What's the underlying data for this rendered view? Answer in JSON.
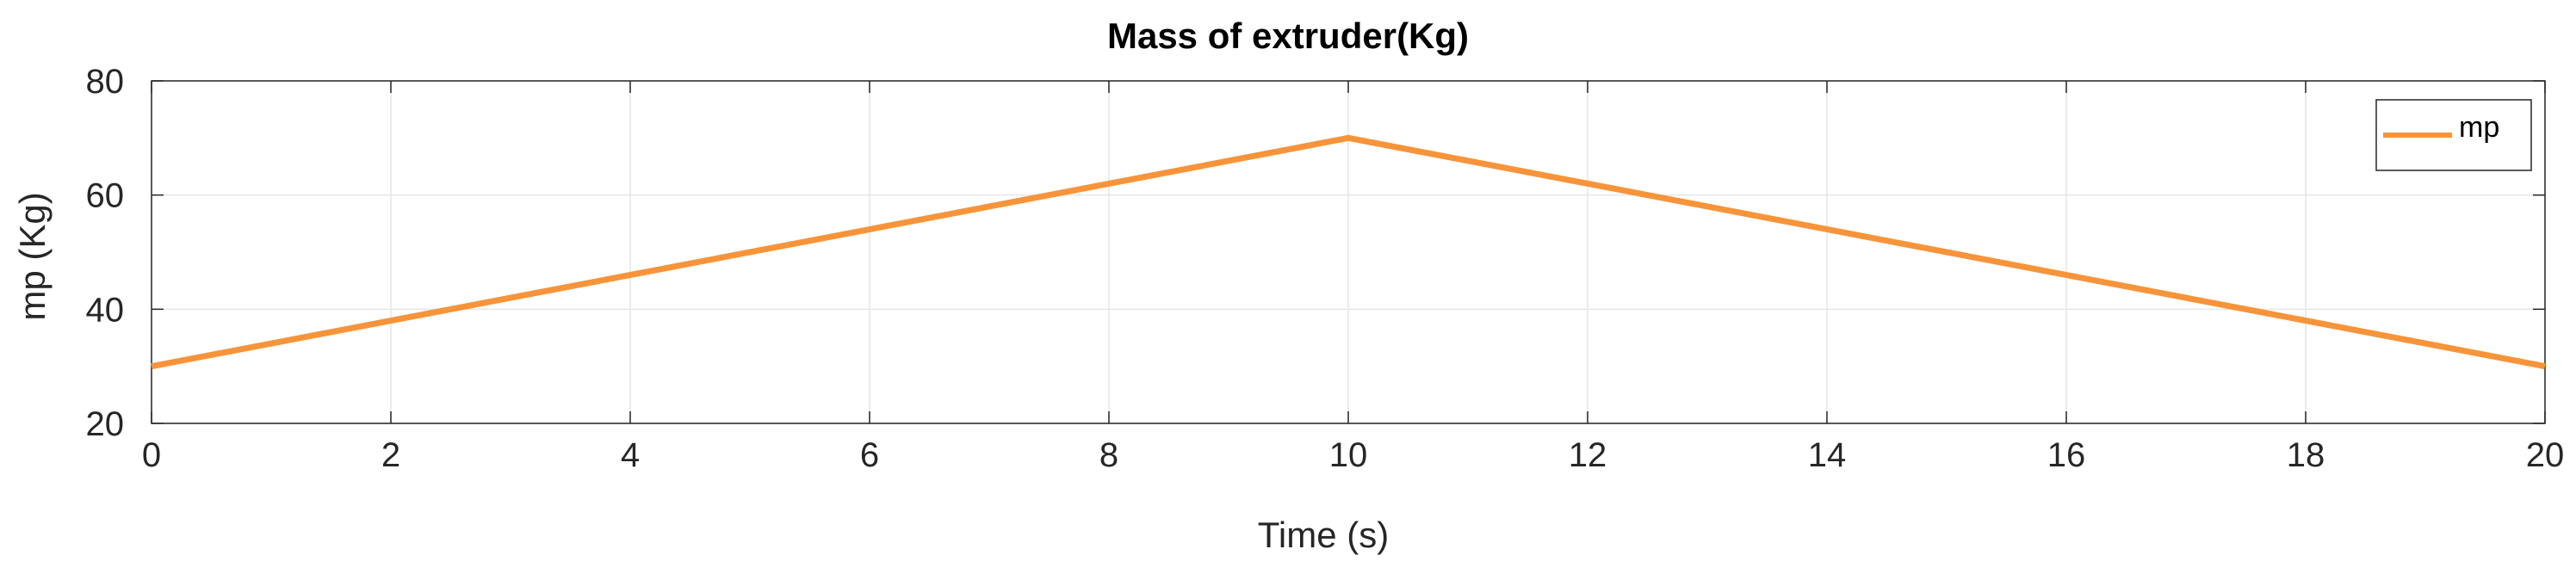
{
  "chart_data": {
    "type": "line",
    "title": "Mass of extruder(Kg)",
    "xlabel": "Time (s)",
    "ylabel": "mp (Kg)",
    "xlim": [
      0,
      20
    ],
    "ylim": [
      20,
      80
    ],
    "xticks": [
      "0",
      "2",
      "4",
      "6",
      "8",
      "10",
      "12",
      "14",
      "16",
      "18",
      "20"
    ],
    "yticks": [
      "20",
      "40",
      "60",
      "80"
    ],
    "grid": true,
    "legend_position": "top-right",
    "series": [
      {
        "name": "mp",
        "color": "#F7943A",
        "x": [
          0,
          10,
          20
        ],
        "y": [
          30,
          70,
          30
        ]
      }
    ]
  }
}
